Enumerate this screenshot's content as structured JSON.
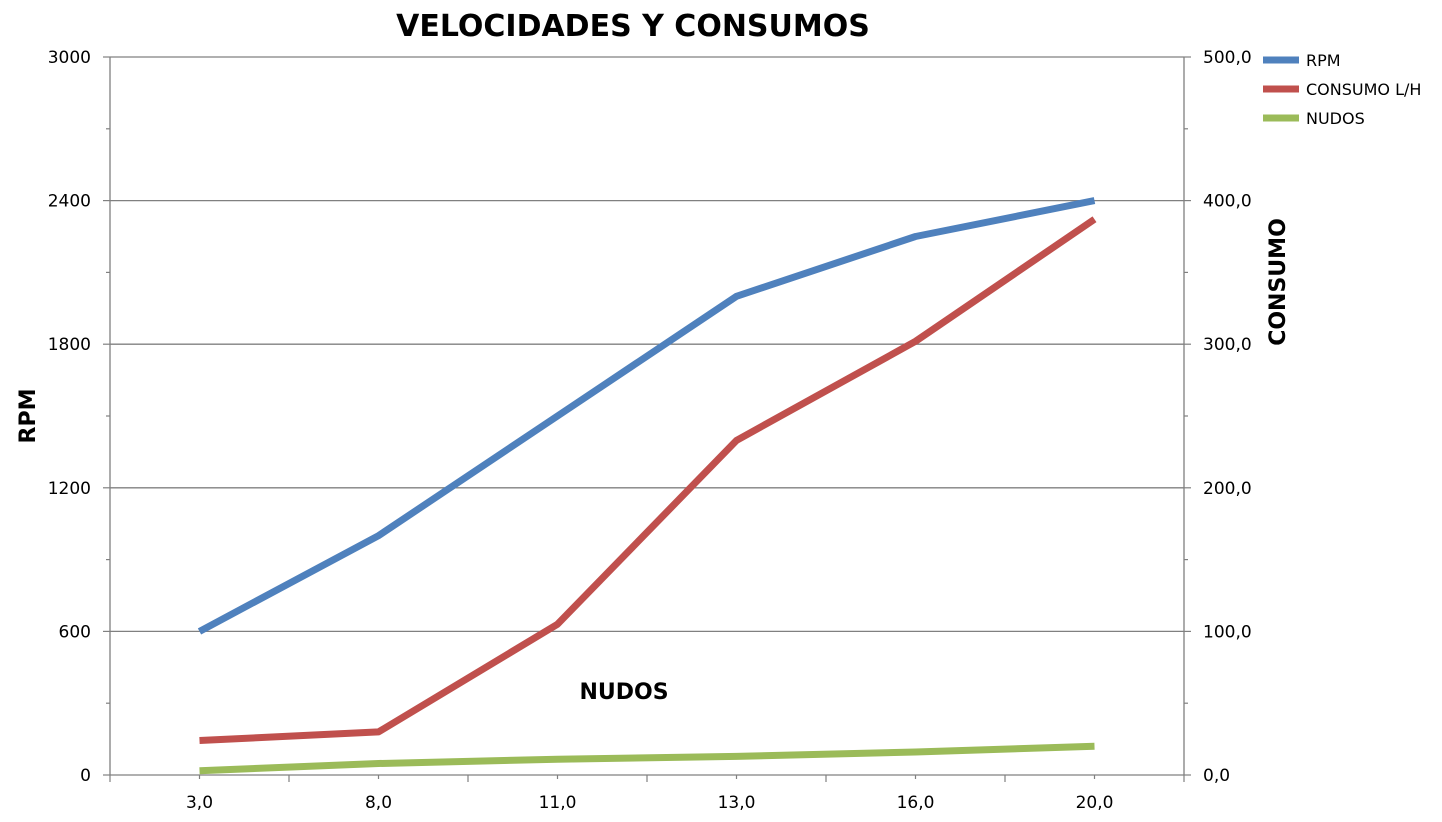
{
  "chart_data": {
    "type": "line",
    "title": "VELOCIDADES Y CONSUMOS",
    "xlabel": "NUDOS",
    "ylabel": "RPM",
    "y2label": "CONSUMO",
    "categories": [
      "3,0",
      "8,0",
      "11,0",
      "13,0",
      "16,0",
      "20,0"
    ],
    "ylim": [
      0,
      3000
    ],
    "y_ticks": [
      "0",
      "600",
      "1200",
      "1800",
      "2400",
      "3000"
    ],
    "y2lim": [
      0,
      500
    ],
    "y2_ticks": [
      "0,0",
      "100,0",
      "200,0",
      "300,0",
      "400,0",
      "500,0"
    ],
    "grid": true,
    "legend_position": "top-right",
    "series": [
      {
        "name": "RPM",
        "axis": "left",
        "color": "#4f81bd",
        "values": [
          600,
          1000,
          1500,
          2000,
          2250,
          2400
        ]
      },
      {
        "name": "CONSUMO L/H",
        "axis": "right",
        "color": "#c0504d",
        "values": [
          24,
          30,
          105,
          233,
          302,
          387
        ]
      },
      {
        "name": "NUDOS",
        "axis": "right",
        "color": "#9bbb59",
        "values": [
          3,
          8,
          11,
          13,
          16,
          20
        ]
      }
    ]
  }
}
